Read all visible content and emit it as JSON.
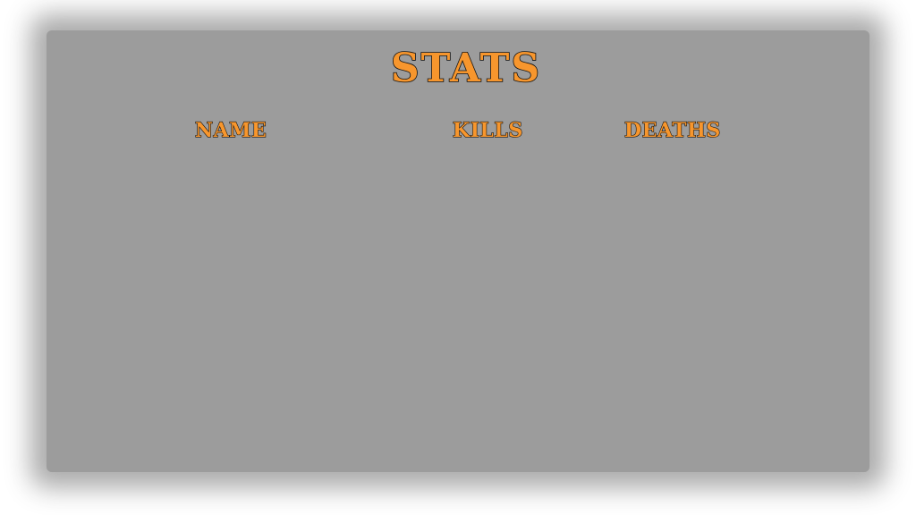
{
  "stats_screen": {
    "title": "STATS",
    "columns": {
      "name": "NAME",
      "kills": "KILLS",
      "deaths": "DEATHS"
    },
    "rows": [],
    "colors": {
      "panel": "#9c9c9c",
      "text_fill": "#f7962d",
      "text_outline": "#111111"
    }
  }
}
